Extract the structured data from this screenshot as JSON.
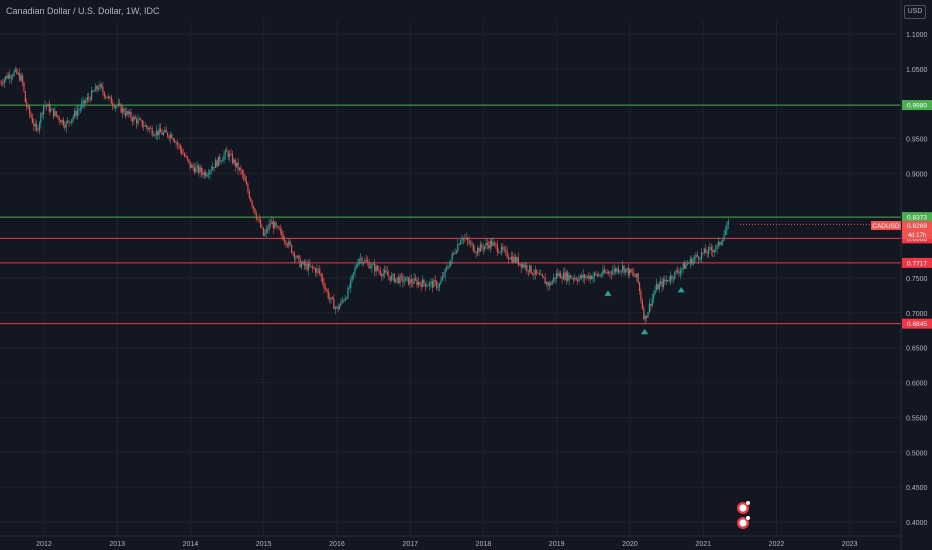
{
  "header": {
    "symbol_title": "Canadian Dollar / U.S. Dollar, 1W, IDC",
    "currency": "USD"
  },
  "colors": {
    "bg": "#131722",
    "up": "#26a69a",
    "down": "#ef5350",
    "green_line": "#4caf50",
    "red_line": "#f23645"
  },
  "price_axis": {
    "ticks": [
      "1.1000",
      "1.0500",
      "0.9500",
      "0.9000",
      "0.7500",
      "0.7000",
      "0.6500",
      "0.6000",
      "0.5500",
      "0.5000",
      "0.4500",
      "0.4000"
    ]
  },
  "time_axis": {
    "ticks": [
      "2012",
      "2013",
      "2014",
      "2015",
      "2016",
      "2017",
      "2018",
      "2019",
      "2020",
      "2021",
      "2022",
      "2023"
    ]
  },
  "levels": [
    {
      "label": "0.9980",
      "value": 0.998,
      "kind": "green"
    },
    {
      "label": "0.8373",
      "value": 0.8373,
      "kind": "green"
    },
    {
      "label": "0.8068",
      "value": 0.8068,
      "kind": "red"
    },
    {
      "label": "0.7717",
      "value": 0.7717,
      "kind": "red"
    },
    {
      "label": "0.6845",
      "value": 0.6845,
      "kind": "red"
    }
  ],
  "current_price": {
    "symbol": "CADUSD",
    "value_label": "0.8269",
    "value": 0.8269,
    "countdown": "4d 17h"
  },
  "markers": [
    {
      "year": 2019.7,
      "value": 0.728
    },
    {
      "year": 2020.2,
      "value": 0.673
    },
    {
      "year": 2020.7,
      "value": 0.733
    }
  ],
  "chart_data": {
    "type": "candlestick",
    "title": "Canadian Dollar / U.S. Dollar, 1W, IDC",
    "ylim": [
      0.38,
      1.12
    ],
    "xlim": [
      2011.4,
      2023.7
    ],
    "series": [
      {
        "name": "CADUSD",
        "x": [
          2011.4,
          2011.5,
          2011.6,
          2011.7,
          2011.75,
          2011.9,
          2012.0,
          2012.3,
          2012.5,
          2012.75,
          2012.9,
          2013.2,
          2013.5,
          2013.75,
          2014.0,
          2014.2,
          2014.5,
          2014.7,
          2015.0,
          2015.1,
          2015.3,
          2015.5,
          2015.75,
          2015.9,
          2016.0,
          2016.15,
          2016.3,
          2016.5,
          2016.75,
          2017.0,
          2017.4,
          2017.7,
          2017.9,
          2018.1,
          2018.3,
          2018.6,
          2018.9,
          2019.0,
          2019.3,
          2019.6,
          2019.9,
          2020.1,
          2020.2,
          2020.35,
          2020.6,
          2020.9,
          2021.2,
          2021.35
        ],
        "y": [
          1.03,
          1.04,
          1.045,
          1.035,
          1.0,
          0.96,
          1.0,
          0.97,
          0.995,
          1.025,
          1.005,
          0.98,
          0.96,
          0.955,
          0.91,
          0.9,
          0.93,
          0.9,
          0.81,
          0.83,
          0.805,
          0.77,
          0.76,
          0.72,
          0.705,
          0.73,
          0.78,
          0.765,
          0.75,
          0.745,
          0.74,
          0.81,
          0.79,
          0.8,
          0.785,
          0.765,
          0.74,
          0.755,
          0.75,
          0.755,
          0.765,
          0.75,
          0.69,
          0.735,
          0.755,
          0.78,
          0.795,
          0.827
        ]
      }
    ]
  }
}
